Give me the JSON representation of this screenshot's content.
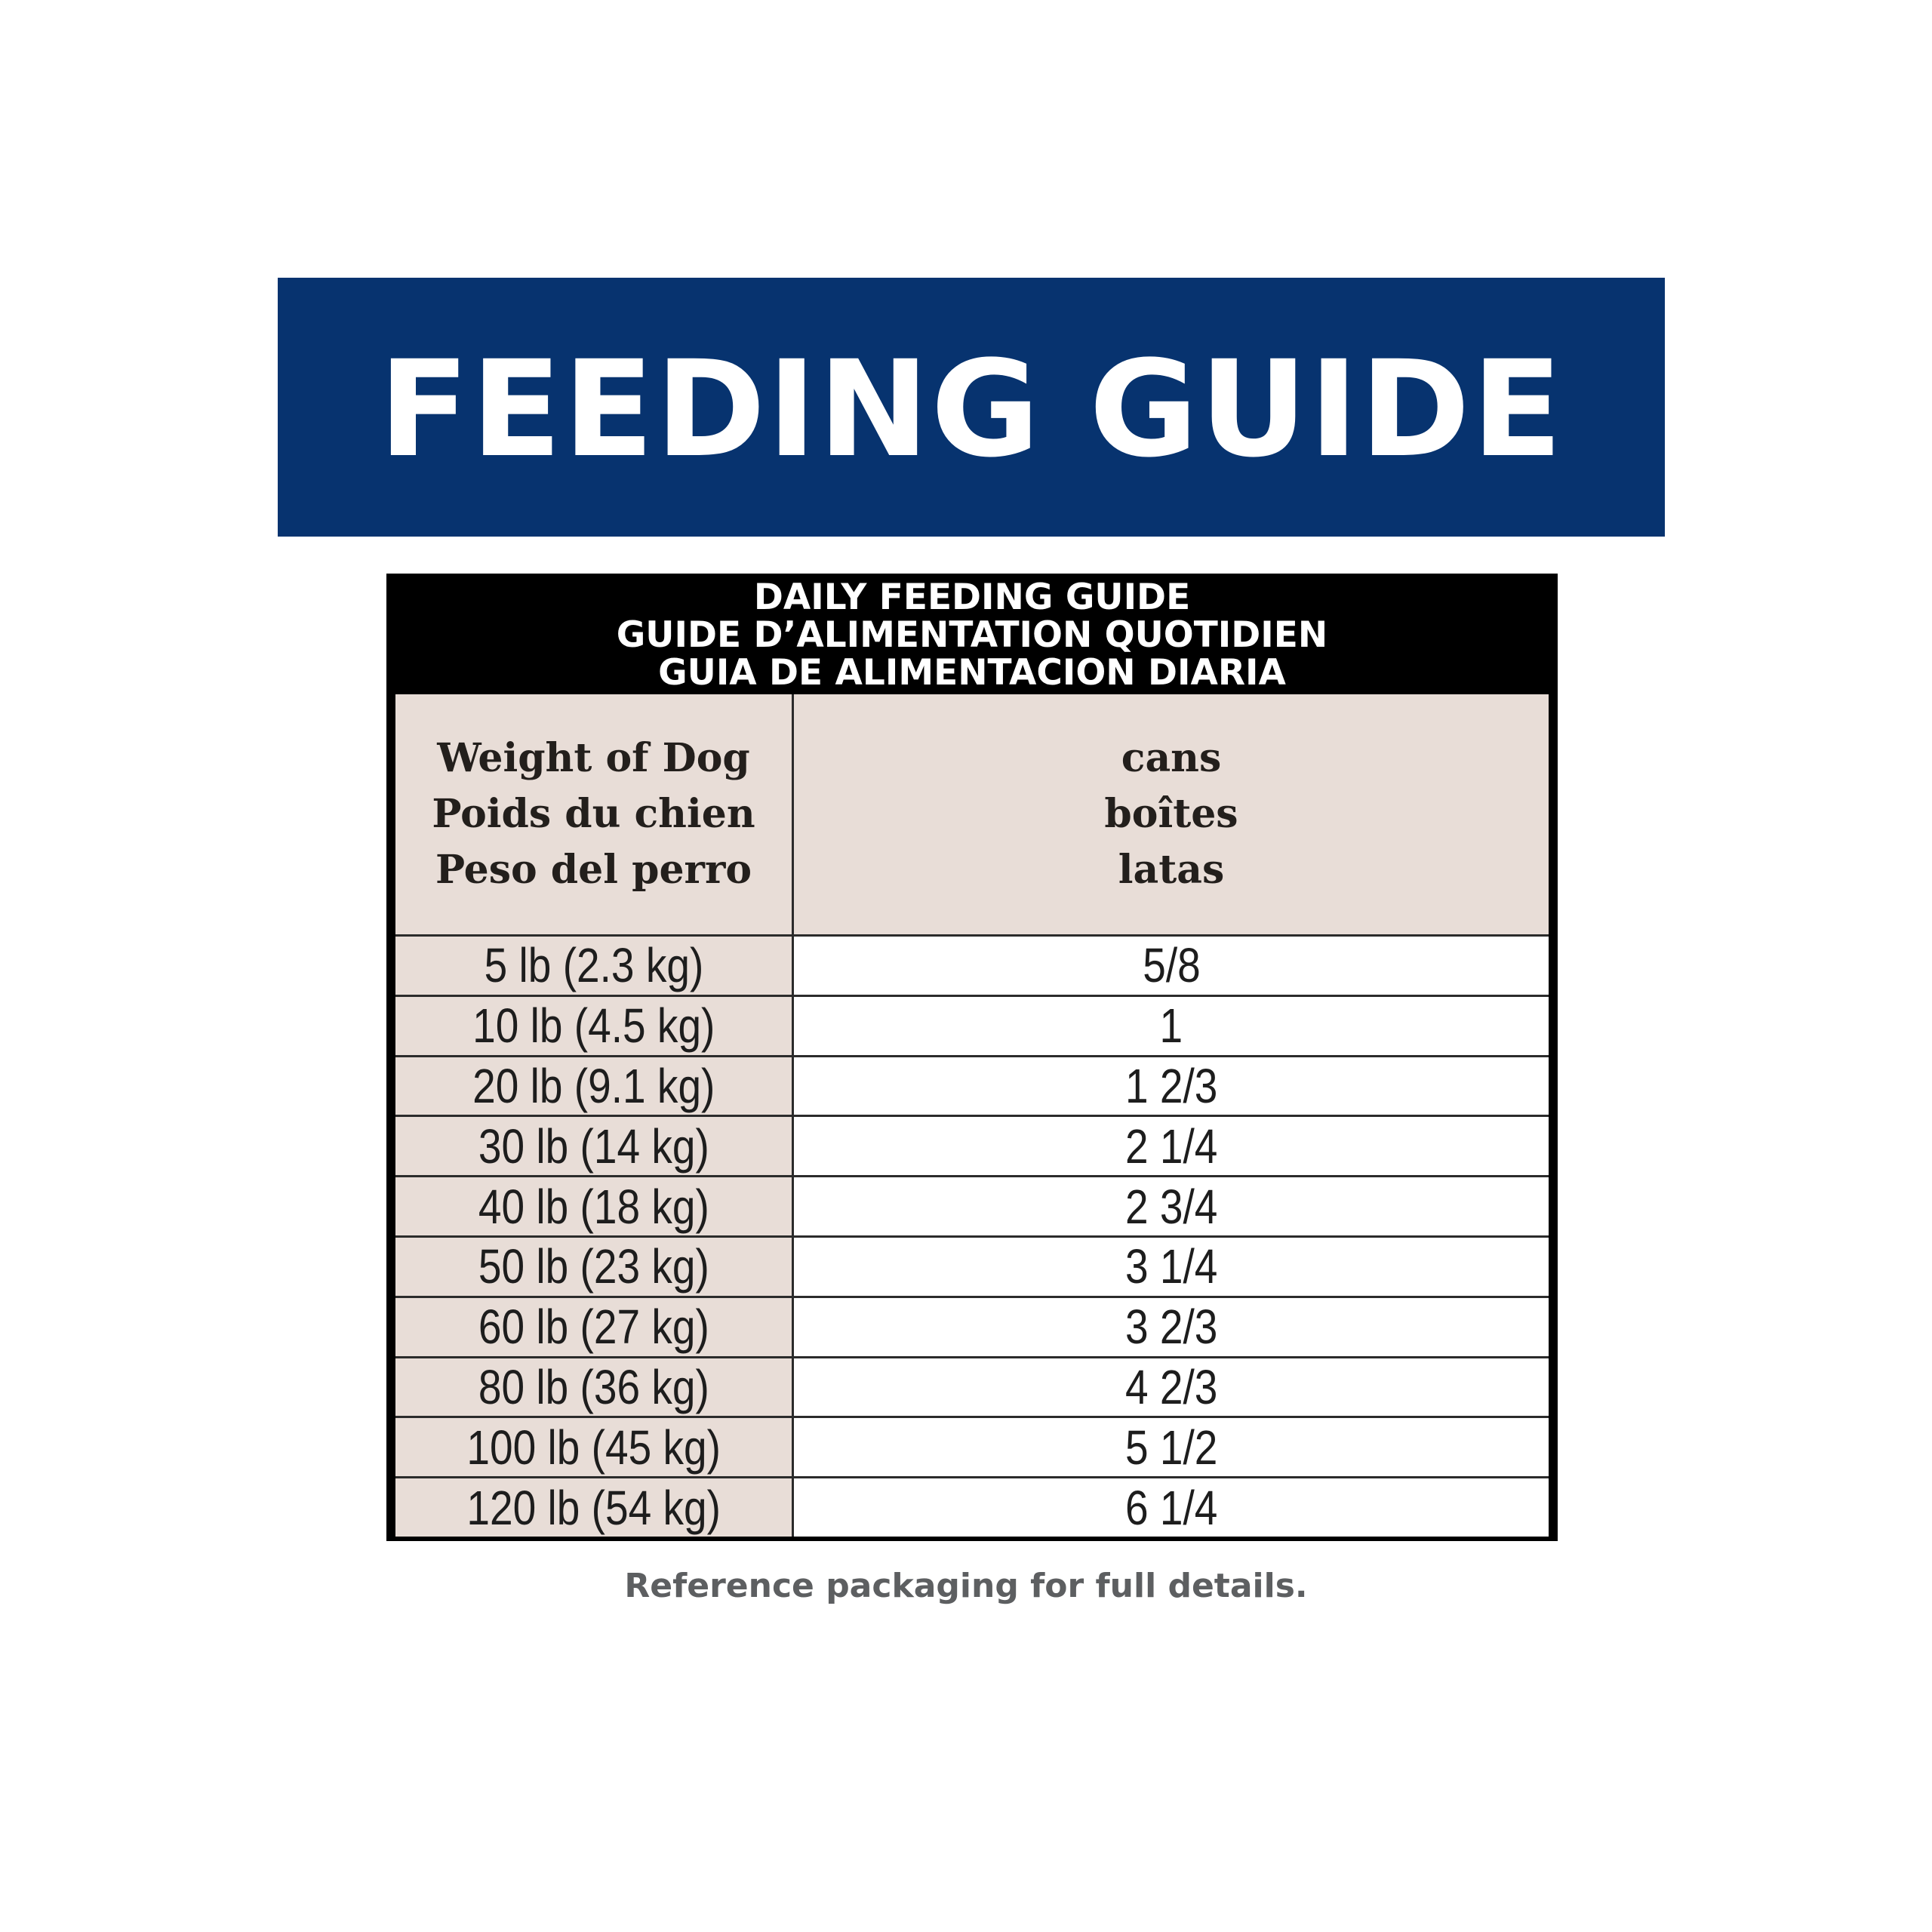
{
  "banner": {
    "title": "FEEDING GUIDE",
    "background_color": "#07336f",
    "text_color": "#ffffff"
  },
  "table": {
    "title_lines": [
      "DAILY FEEDING GUIDE",
      "GUIDE D’ALIMENTATION QUOTIDIEN",
      "GUIA DE ALIMENTACION DIARIA"
    ],
    "column_headers": {
      "weight": [
        "Weight of Dog",
        "Poids du chien",
        "Peso del perro"
      ],
      "cans": [
        "cans",
        "boîtes",
        "latas"
      ]
    },
    "rows": [
      {
        "weight": "5 lb (2.3 kg)",
        "cans": "5/8"
      },
      {
        "weight": "10 lb (4.5 kg)",
        "cans": "1"
      },
      {
        "weight": "20 lb (9.1 kg)",
        "cans": "1 2/3"
      },
      {
        "weight": "30 lb (14 kg)",
        "cans": "2 1/4"
      },
      {
        "weight": "40 lb (18 kg)",
        "cans": "2 3/4"
      },
      {
        "weight": "50 lb (23 kg)",
        "cans": "3 1/4"
      },
      {
        "weight": "60 lb (27 kg)",
        "cans": "3 2/3"
      },
      {
        "weight": "80 lb (36 kg)",
        "cans": "4 2/3"
      },
      {
        "weight": "100 lb (45 kg)",
        "cans": "5 1/2"
      },
      {
        "weight": "120 lb (54 kg)",
        "cans": "6 1/4"
      }
    ],
    "label_column_color": "#e8ddd7"
  },
  "footnote": "Reference packaging for full details."
}
